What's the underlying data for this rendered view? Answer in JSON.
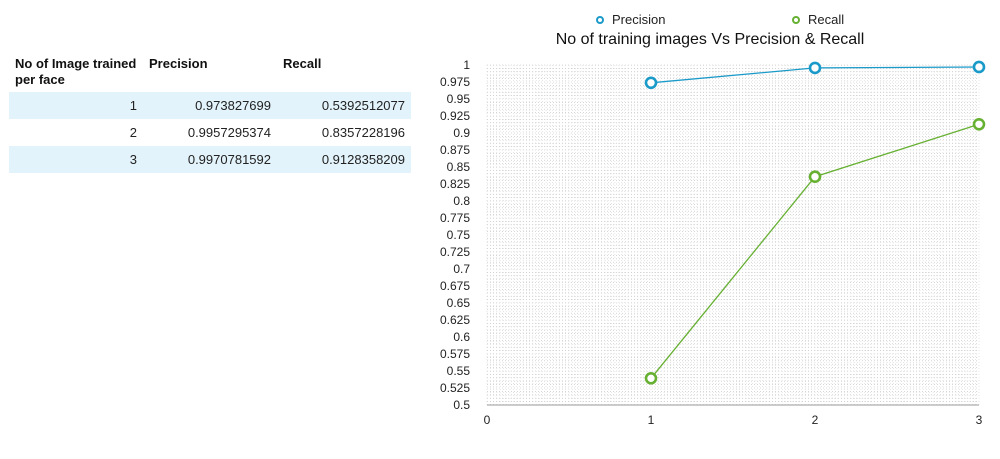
{
  "table": {
    "headers": [
      "No of Image trained per face",
      "Precision",
      "Recall"
    ],
    "rows": [
      [
        "1",
        "0.973827699",
        "0.5392512077"
      ],
      [
        "2",
        "0.9957295374",
        "0.8357228196"
      ],
      [
        "3",
        "0.9970781592",
        "0.9128358209"
      ]
    ]
  },
  "chart_data": {
    "type": "line",
    "title": "No of training images Vs Precision & Recall",
    "xlabel": "",
    "ylabel": "",
    "x": [
      1,
      2,
      3
    ],
    "xticks": [
      "0",
      "1",
      "2",
      "3"
    ],
    "xlim": [
      0,
      3
    ],
    "ylim": [
      0.5,
      1
    ],
    "yticks": [
      "0.5",
      "0.525",
      "0.55",
      "0.575",
      "0.6",
      "0.625",
      "0.65",
      "0.675",
      "0.7",
      "0.725",
      "0.75",
      "0.775",
      "0.8",
      "0.825",
      "0.85",
      "0.875",
      "0.9",
      "0.925",
      "0.95",
      "0.975",
      "1"
    ],
    "grid": true,
    "legend": "top",
    "series": [
      {
        "name": "Precision",
        "color": "#1a9ac9",
        "values": [
          0.973827699,
          0.9957295374,
          0.9970781592
        ]
      },
      {
        "name": "Recall",
        "color": "#66b032",
        "values": [
          0.5392512077,
          0.8357228196,
          0.9128358209
        ]
      }
    ]
  }
}
